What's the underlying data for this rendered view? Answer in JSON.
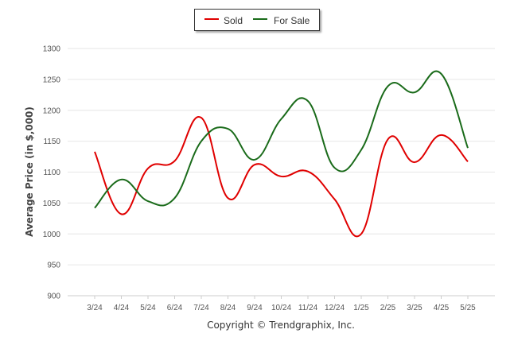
{
  "legend": {
    "sold": "Sold",
    "for_sale": "For Sale"
  },
  "footer": "Copyright © Trendgraphix, Inc.",
  "chart_data": {
    "type": "line",
    "title": "",
    "xlabel": "",
    "ylabel": "Average Price (in $,000)",
    "categories": [
      "3/24",
      "4/24",
      "5/24",
      "6/24",
      "7/24",
      "8/24",
      "9/24",
      "10/24",
      "11/24",
      "12/24",
      "1/25",
      "2/25",
      "3/25",
      "4/25",
      "5/25"
    ],
    "ylim": [
      900,
      1300
    ],
    "yticks": [
      900,
      950,
      1000,
      1050,
      1100,
      1150,
      1200,
      1250,
      1300
    ],
    "grid": true,
    "legend_position": "top-center",
    "series": [
      {
        "name": "Sold",
        "color": "#e00000",
        "values": [
          1133,
          1032,
          1106,
          1118,
          1188,
          1058,
          1112,
          1093,
          1101,
          1056,
          1000,
          1153,
          1116,
          1160,
          1117
        ]
      },
      {
        "name": "For Sale",
        "color": "#1a6b1a",
        "values": [
          1042,
          1088,
          1053,
          1058,
          1150,
          1170,
          1120,
          1186,
          1215,
          1107,
          1136,
          1239,
          1229,
          1259,
          1139
        ]
      }
    ]
  }
}
